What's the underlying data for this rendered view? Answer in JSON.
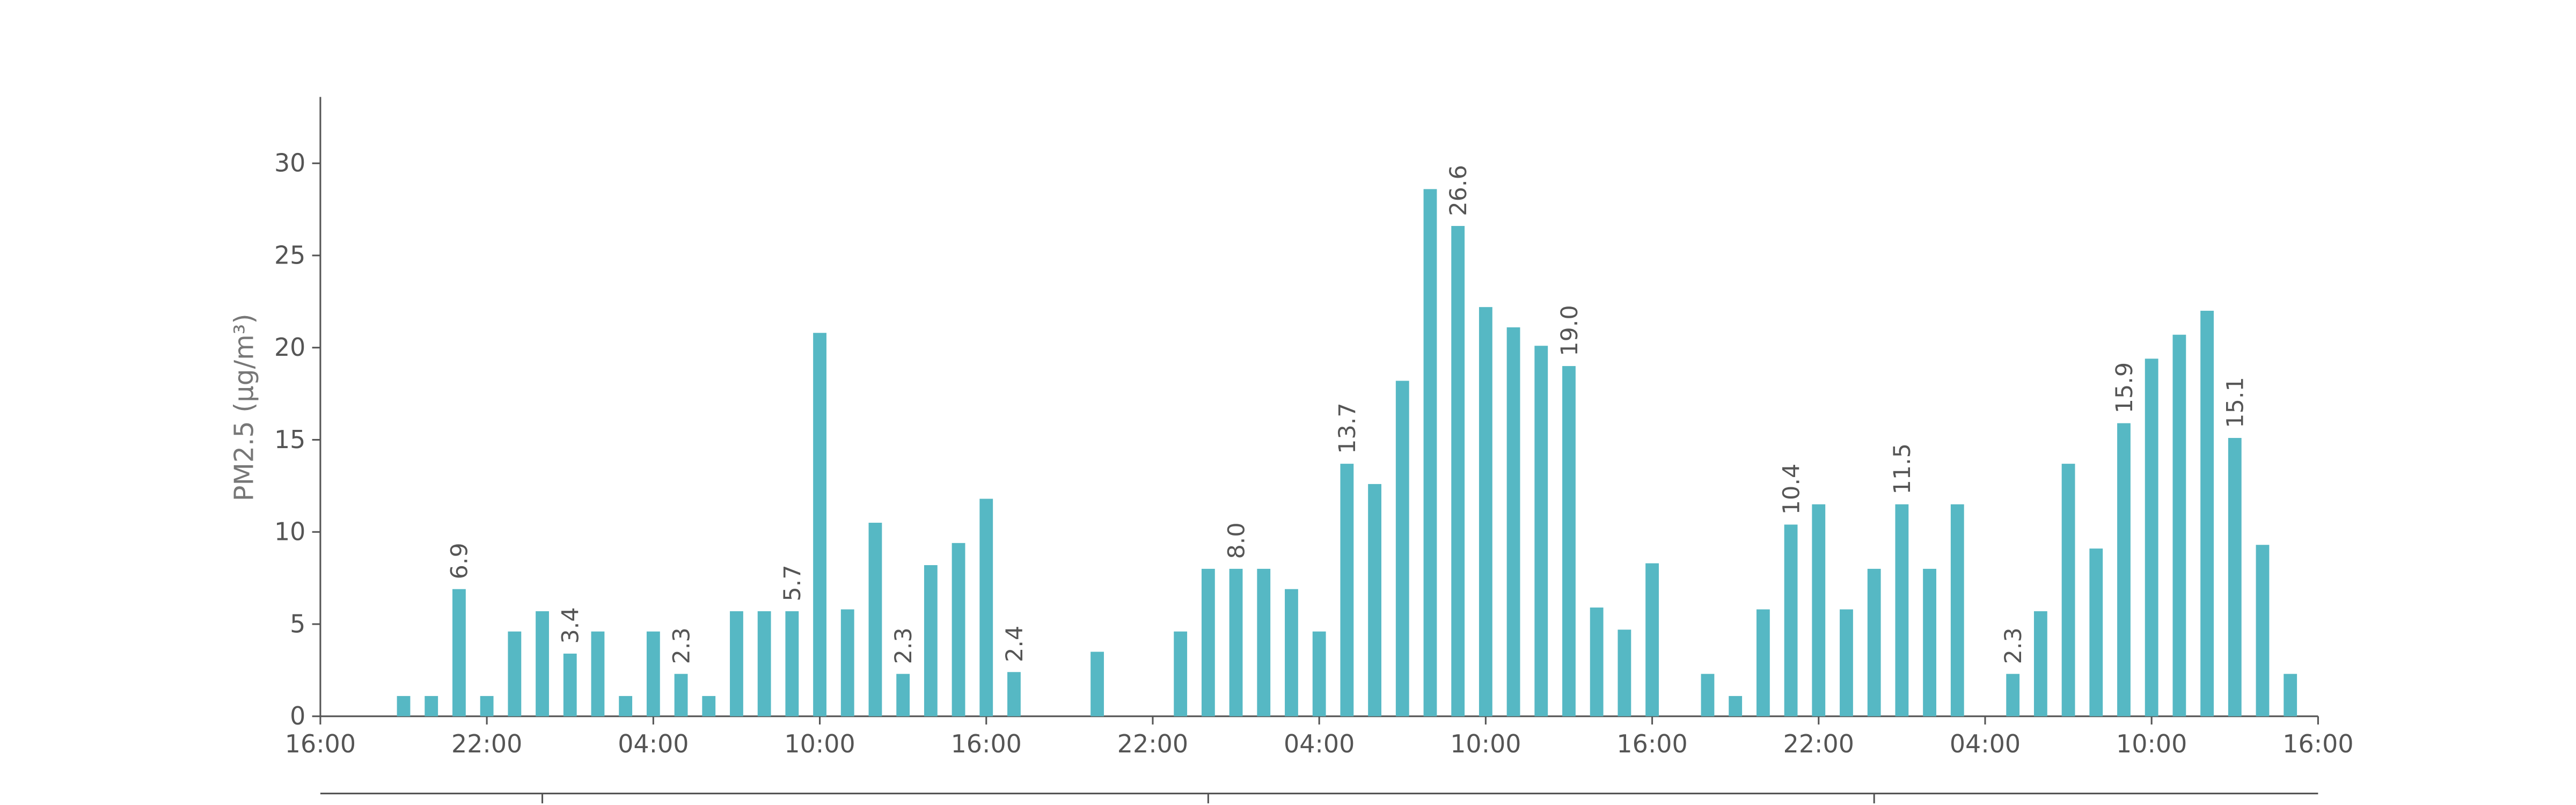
{
  "chart_data": {
    "type": "bar",
    "ylabel": "PM2.5 (μg/m³)",
    "color": "#56b8c4",
    "x": [
      3,
      4,
      5,
      6,
      7,
      8,
      9,
      10,
      11,
      12,
      13,
      14,
      15,
      16,
      17,
      18,
      19,
      20,
      21,
      22,
      23,
      24,
      25,
      28,
      31,
      32,
      33,
      34,
      35,
      36,
      37,
      38,
      39,
      40,
      41,
      42,
      43,
      44,
      45,
      46,
      47,
      48,
      50,
      51,
      52,
      53,
      54,
      55,
      56,
      57,
      58,
      59,
      61,
      62,
      63,
      64,
      65,
      66,
      67,
      68,
      69,
      70,
      71
    ],
    "values": [
      1.1,
      1.1,
      6.9,
      1.1,
      4.6,
      5.7,
      3.4,
      4.6,
      1.1,
      4.6,
      2.3,
      1.1,
      5.7,
      5.7,
      5.7,
      20.8,
      5.8,
      10.5,
      2.3,
      8.2,
      9.4,
      11.8,
      2.4,
      3.5,
      4.6,
      8.0,
      8.0,
      8.0,
      6.9,
      4.6,
      13.7,
      12.6,
      18.2,
      28.6,
      26.6,
      22.2,
      21.1,
      20.1,
      19.0,
      5.9,
      4.7,
      8.3,
      2.3,
      1.1,
      5.8,
      10.4,
      11.5,
      5.8,
      8.0,
      11.5,
      8.0,
      11.5,
      2.3,
      5.7,
      13.7,
      9.1,
      15.9,
      19.4,
      20.7,
      22.0,
      15.1,
      9.3,
      2.3
    ],
    "value_labels": [
      null,
      null,
      "6.9",
      null,
      null,
      null,
      "3.4",
      null,
      null,
      null,
      "2.3",
      null,
      null,
      null,
      "5.7",
      null,
      null,
      null,
      "2.3",
      null,
      null,
      null,
      "2.4",
      null,
      null,
      null,
      "8.0",
      null,
      null,
      null,
      "13.7",
      null,
      null,
      null,
      "26.6",
      null,
      null,
      null,
      "19.0",
      null,
      null,
      null,
      null,
      null,
      null,
      "10.4",
      null,
      null,
      null,
      "11.5",
      null,
      null,
      "2.3",
      null,
      null,
      null,
      "15.9",
      null,
      null,
      null,
      "15.1",
      null,
      null
    ],
    "xlim": [
      0,
      72
    ],
    "xticks": [
      {
        "value": 0,
        "label": "16:00"
      },
      {
        "value": 6,
        "label": "22:00"
      },
      {
        "value": 12,
        "label": "04:00"
      },
      {
        "value": 18,
        "label": "10:00"
      },
      {
        "value": 24,
        "label": "16:00"
      },
      {
        "value": 30,
        "label": "22:00"
      },
      {
        "value": 36,
        "label": "04:00"
      },
      {
        "value": 42,
        "label": "10:00"
      },
      {
        "value": 48,
        "label": "16:00"
      },
      {
        "value": 54,
        "label": "22:00"
      },
      {
        "value": 60,
        "label": "04:00"
      },
      {
        "value": 66,
        "label": "10:00"
      },
      {
        "value": 72,
        "label": "16:00"
      }
    ],
    "secondary_xticks": [
      8,
      32,
      56
    ],
    "ylim": [
      0,
      33.6
    ],
    "yticks": [
      0,
      5,
      10,
      15,
      20,
      25,
      30
    ]
  }
}
